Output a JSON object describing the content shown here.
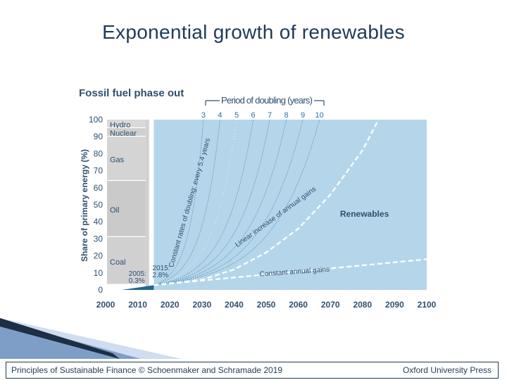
{
  "slide": {
    "title": "Exponential growth of renewables",
    "footer_left": "Principles of Sustainable Finance © Schoenmaker and Schramade 2019",
    "footer_right": "Oxford University Press"
  },
  "chart_data": {
    "type": "area",
    "title": "Fossil fuel phase out",
    "ylabel": "Share of primary energy (%)",
    "xlabel": "",
    "xlim": [
      2000,
      2100
    ],
    "ylim": [
      0,
      100
    ],
    "x_ticks": [
      2000,
      2010,
      2020,
      2030,
      2040,
      2050,
      2060,
      2070,
      2080,
      2090,
      2100
    ],
    "y_ticks": [
      0,
      10,
      20,
      30,
      40,
      50,
      60,
      70,
      80,
      90,
      100
    ],
    "colors": {
      "renewables": "#b5d6ea",
      "historical": "#c8c8c8",
      "labels": "#2f4f6f",
      "curves": "#ffffff",
      "observed": "#1f6a8a"
    },
    "historical_bands": [
      {
        "name": "Hydro",
        "from": 95,
        "to": 100
      },
      {
        "name": "Nuclear",
        "from": 90,
        "to": 95
      },
      {
        "name": "Gas",
        "from": 64,
        "to": 90
      },
      {
        "name": "Oil",
        "from": 31,
        "to": 64
      },
      {
        "name": "Coal",
        "from": 3,
        "to": 31
      }
    ],
    "doubling_header": "Period of doubling (years)",
    "doubling_periods": [
      3,
      4,
      5,
      6,
      7,
      8,
      9,
      10
    ],
    "doubling_start": {
      "year": 2015,
      "share": 2.8
    },
    "observed_points": [
      {
        "year": 2005,
        "share": 0.3,
        "label_year": "2005:",
        "label_value": "0.3%"
      },
      {
        "year": 2015,
        "share": 2.8,
        "label_year": "2015:",
        "label_value": "2.8%"
      }
    ],
    "scenarios": [
      {
        "name": "Linear increase of annual gains",
        "points": [
          [
            2015,
            2.8
          ],
          [
            2030,
            6
          ],
          [
            2040,
            12
          ],
          [
            2050,
            22
          ],
          [
            2060,
            36
          ],
          [
            2070,
            56
          ],
          [
            2080,
            82
          ],
          [
            2085,
            100
          ]
        ]
      },
      {
        "name": "Constant annual gains",
        "points": [
          [
            2015,
            2.8
          ],
          [
            2100,
            18
          ]
        ]
      }
    ],
    "annotations": {
      "constant_doubling": "Constant rates of doubling: every 5.4 years",
      "linear": "Linear increase of annual gains",
      "constant": "Constant annual gains",
      "renewables": "Renewables"
    }
  }
}
